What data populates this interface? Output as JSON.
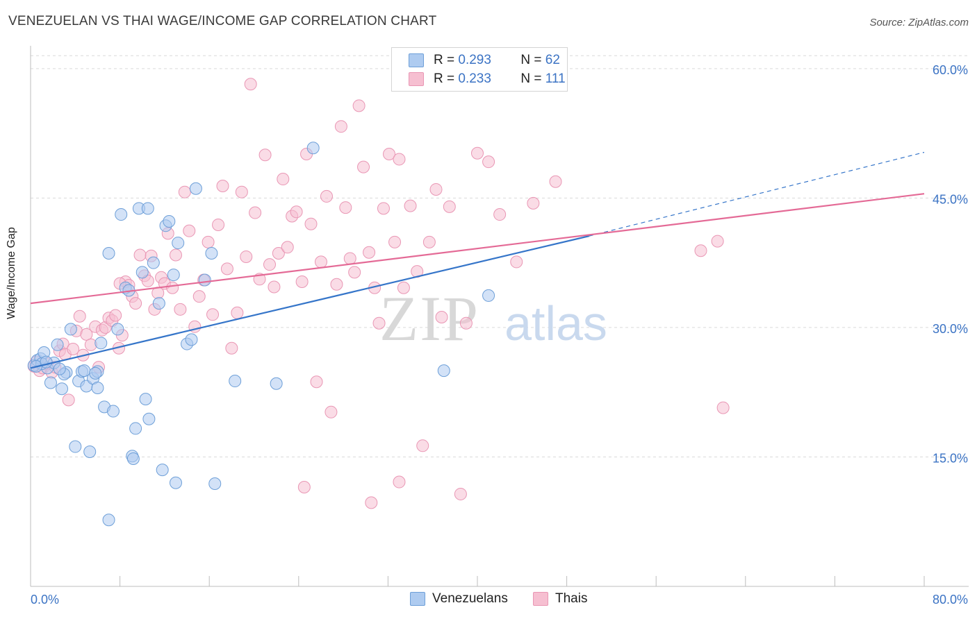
{
  "header": {
    "title": "VENEZUELAN VS THAI WAGE/INCOME GAP CORRELATION CHART",
    "source": "Source: ZipAtlas.com"
  },
  "watermark": {
    "zip": "ZIP",
    "atlas": "atlas"
  },
  "colors": {
    "venezuelan_fill": "#aecbf0",
    "venezuelan_stroke": "#6d9fd8",
    "venezuelan_line": "#3575c9",
    "thai_fill": "#f6bfd1",
    "thai_stroke": "#e996b4",
    "thai_line": "#e46a96",
    "accent_text": "#3b73c4",
    "grid": "#d9d9d9"
  },
  "legend": {
    "rows": [
      {
        "r_label": "R = ",
        "r_value": "0.293",
        "n_label": "N = ",
        "n_value": "62"
      },
      {
        "r_label": "R = ",
        "r_value": "0.233",
        "n_label": "N = ",
        "n_value": "111"
      }
    ]
  },
  "bottom_legend": {
    "items": [
      "Venezuelans",
      "Thais"
    ]
  },
  "chart_data": {
    "type": "scatter",
    "title": "VENEZUELAN VS THAI WAGE/INCOME GAP CORRELATION CHART",
    "xlabel": "",
    "ylabel": "Wage/Income Gap",
    "xlim": [
      0,
      80
    ],
    "ylim": [
      0,
      62
    ],
    "x_tick_labels": [
      "0.0%",
      "80.0%"
    ],
    "y_ticks": [
      15,
      30,
      45,
      60
    ],
    "y_tick_labels": [
      "15.0%",
      "30.0%",
      "45.0%",
      "60.0%"
    ],
    "grid": true,
    "series": [
      {
        "name": "Venezuelans",
        "r": 0.293,
        "n": 62,
        "trend": {
          "x0": 0,
          "y0": 25.3,
          "x1": 50,
          "y1": 40.6,
          "dashed_to_x": 80,
          "dashed_to_y": 50.3
        },
        "points": [
          [
            0.3,
            25.6
          ],
          [
            0.6,
            26.2
          ],
          [
            0.9,
            26.4
          ],
          [
            1.2,
            27.1
          ],
          [
            1.5,
            25.3
          ],
          [
            1.8,
            23.6
          ],
          [
            2.1,
            25.9
          ],
          [
            2.4,
            28.0
          ],
          [
            2.8,
            22.9
          ],
          [
            3.2,
            24.8
          ],
          [
            3.6,
            29.8
          ],
          [
            4.0,
            16.2
          ],
          [
            4.3,
            23.8
          ],
          [
            4.6,
            24.9
          ],
          [
            5.0,
            23.2
          ],
          [
            5.3,
            15.6
          ],
          [
            5.6,
            24.1
          ],
          [
            6.0,
            23.0
          ],
          [
            6.3,
            28.2
          ],
          [
            6.6,
            20.8
          ],
          [
            7.0,
            38.6
          ],
          [
            7.4,
            20.3
          ],
          [
            7.8,
            29.8
          ],
          [
            8.1,
            43.1
          ],
          [
            8.5,
            34.6
          ],
          [
            8.8,
            34.3
          ],
          [
            9.1,
            15.1
          ],
          [
            9.4,
            18.3
          ],
          [
            9.7,
            43.8
          ],
          [
            10.0,
            36.4
          ],
          [
            10.3,
            21.7
          ],
          [
            10.6,
            19.4
          ],
          [
            11.0,
            37.5
          ],
          [
            11.5,
            32.8
          ],
          [
            11.8,
            13.5
          ],
          [
            12.1,
            41.8
          ],
          [
            12.4,
            42.3
          ],
          [
            12.8,
            36.1
          ],
          [
            13.0,
            12.0
          ],
          [
            13.2,
            39.8
          ],
          [
            14.0,
            28.1
          ],
          [
            14.4,
            28.6
          ],
          [
            14.8,
            46.1
          ],
          [
            15.6,
            35.5
          ],
          [
            16.2,
            38.6
          ],
          [
            16.5,
            11.9
          ],
          [
            18.3,
            23.8
          ],
          [
            22.0,
            23.5
          ],
          [
            25.3,
            50.8
          ],
          [
            37.0,
            25.0
          ],
          [
            41.0,
            33.7
          ],
          [
            7.0,
            7.7
          ],
          [
            9.2,
            14.8
          ],
          [
            6.0,
            24.9
          ],
          [
            4.8,
            25.0
          ],
          [
            3.0,
            24.6
          ],
          [
            2.6,
            25.2
          ],
          [
            5.8,
            24.7
          ],
          [
            1.0,
            25.8
          ],
          [
            10.5,
            43.8
          ],
          [
            0.5,
            25.5
          ],
          [
            1.4,
            26.0
          ]
        ]
      },
      {
        "name": "Thais",
        "r": 0.233,
        "n": 111,
        "trend": {
          "x0": 0,
          "y0": 32.8,
          "x1": 80,
          "y1": 45.5
        },
        "points": [
          [
            0.3,
            25.5
          ],
          [
            0.5,
            26.0
          ],
          [
            0.8,
            25.0
          ],
          [
            1.1,
            25.3
          ],
          [
            1.5,
            25.8
          ],
          [
            1.9,
            24.8
          ],
          [
            2.2,
            25.4
          ],
          [
            2.6,
            27.3
          ],
          [
            2.9,
            28.1
          ],
          [
            3.1,
            26.9
          ],
          [
            3.4,
            21.6
          ],
          [
            3.8,
            27.5
          ],
          [
            4.1,
            29.6
          ],
          [
            4.4,
            31.3
          ],
          [
            4.7,
            26.8
          ],
          [
            5.0,
            29.2
          ],
          [
            5.4,
            28.0
          ],
          [
            5.8,
            30.1
          ],
          [
            6.1,
            25.4
          ],
          [
            6.4,
            29.7
          ],
          [
            6.7,
            30.0
          ],
          [
            7.0,
            31.1
          ],
          [
            7.3,
            30.8
          ],
          [
            7.6,
            31.4
          ],
          [
            7.9,
            27.6
          ],
          [
            8.2,
            29.1
          ],
          [
            8.5,
            35.3
          ],
          [
            8.8,
            34.9
          ],
          [
            9.1,
            33.6
          ],
          [
            9.4,
            32.8
          ],
          [
            9.8,
            38.4
          ],
          [
            10.2,
            36.0
          ],
          [
            10.5,
            35.4
          ],
          [
            10.8,
            38.3
          ],
          [
            11.1,
            32.1
          ],
          [
            11.4,
            34.0
          ],
          [
            11.7,
            35.8
          ],
          [
            12.0,
            35.1
          ],
          [
            12.3,
            40.9
          ],
          [
            12.7,
            34.6
          ],
          [
            13.0,
            38.4
          ],
          [
            13.4,
            32.1
          ],
          [
            13.8,
            45.7
          ],
          [
            14.2,
            41.2
          ],
          [
            14.7,
            30.1
          ],
          [
            15.1,
            33.6
          ],
          [
            15.5,
            35.5
          ],
          [
            15.9,
            39.9
          ],
          [
            16.3,
            31.5
          ],
          [
            16.8,
            41.9
          ],
          [
            17.2,
            46.4
          ],
          [
            17.6,
            36.8
          ],
          [
            18.0,
            27.6
          ],
          [
            18.5,
            31.7
          ],
          [
            18.9,
            45.7
          ],
          [
            19.3,
            38.2
          ],
          [
            19.7,
            58.2
          ],
          [
            20.1,
            43.3
          ],
          [
            20.5,
            35.6
          ],
          [
            21.0,
            50.0
          ],
          [
            21.4,
            37.3
          ],
          [
            21.8,
            34.7
          ],
          [
            22.2,
            38.6
          ],
          [
            22.6,
            47.2
          ],
          [
            23.0,
            39.3
          ],
          [
            23.4,
            42.9
          ],
          [
            23.8,
            43.4
          ],
          [
            24.3,
            35.3
          ],
          [
            24.7,
            50.1
          ],
          [
            25.1,
            42.0
          ],
          [
            25.6,
            23.7
          ],
          [
            26.0,
            37.6
          ],
          [
            26.5,
            45.2
          ],
          [
            26.9,
            20.2
          ],
          [
            27.4,
            35.0
          ],
          [
            27.8,
            53.3
          ],
          [
            28.2,
            43.9
          ],
          [
            28.6,
            38.0
          ],
          [
            29.0,
            36.4
          ],
          [
            29.4,
            55.7
          ],
          [
            29.8,
            48.6
          ],
          [
            30.3,
            38.7
          ],
          [
            30.8,
            34.6
          ],
          [
            31.2,
            30.5
          ],
          [
            31.6,
            43.8
          ],
          [
            32.1,
            50.1
          ],
          [
            32.6,
            39.9
          ],
          [
            33.0,
            49.5
          ],
          [
            33.4,
            34.6
          ],
          [
            34.0,
            44.1
          ],
          [
            34.6,
            36.5
          ],
          [
            35.1,
            16.3
          ],
          [
            35.7,
            39.9
          ],
          [
            36.3,
            46.0
          ],
          [
            36.8,
            31.2
          ],
          [
            37.5,
            44.0
          ],
          [
            38.5,
            10.7
          ],
          [
            39.0,
            30.5
          ],
          [
            40.0,
            50.2
          ],
          [
            41.0,
            49.2
          ],
          [
            42.0,
            43.1
          ],
          [
            43.5,
            37.6
          ],
          [
            45.0,
            44.4
          ],
          [
            47.0,
            46.9
          ],
          [
            60.0,
            38.9
          ],
          [
            61.5,
            40.0
          ],
          [
            62.0,
            20.7
          ],
          [
            30.5,
            9.7
          ],
          [
            24.5,
            11.5
          ],
          [
            33.0,
            12.1
          ],
          [
            8.0,
            35.1
          ]
        ]
      }
    ]
  }
}
